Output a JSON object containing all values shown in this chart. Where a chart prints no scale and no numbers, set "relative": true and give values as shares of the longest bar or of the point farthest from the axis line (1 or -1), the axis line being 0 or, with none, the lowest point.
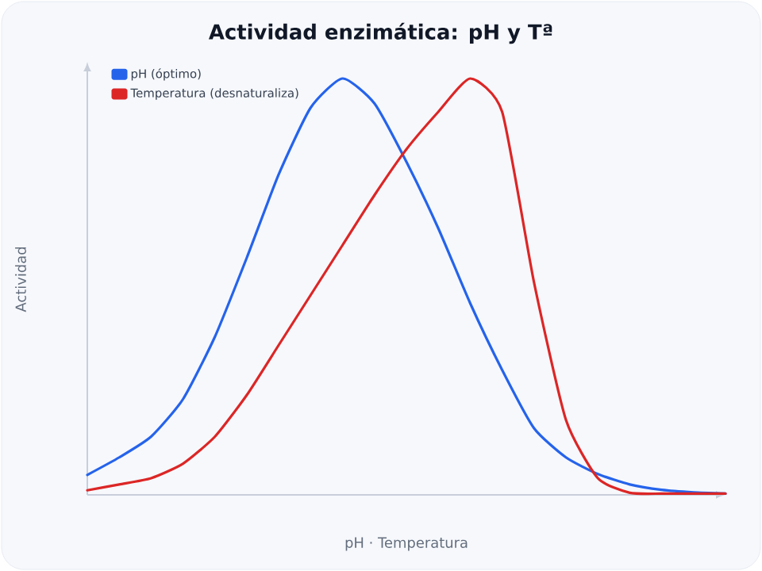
{
  "chart_data": {
    "type": "line",
    "title": "Actividad enzimática: pH y Tª",
    "xlabel": "pH · Temperatura",
    "ylabel": "Actividad",
    "relative": true,
    "legend": "top left",
    "marker": "none",
    "line_style": "solid",
    "categories": [
      null,
      null,
      null,
      null,
      null,
      null,
      null,
      null,
      null,
      null,
      null,
      null,
      null,
      null,
      null,
      null,
      null,
      null,
      null,
      null,
      null
    ],
    "series": [
      {
        "name": "pH (óptimo)",
        "color": "#2563eb",
        "values": [
          0.048,
          0.09,
          0.14,
          0.23,
          0.38,
          0.57,
          0.77,
          0.93,
          1.0,
          0.94,
          0.8,
          0.64,
          0.46,
          0.3,
          0.16,
          0.09,
          0.05,
          0.025,
          0.012,
          0.006,
          0.003
        ]
      },
      {
        "name": "Temperatura (desnaturaliza)",
        "color": "#dc2626",
        "values": [
          0.011,
          0.025,
          0.04,
          0.075,
          0.14,
          0.24,
          0.36,
          0.48,
          0.6,
          0.72,
          0.83,
          0.92,
          1.0,
          0.92,
          0.51,
          0.18,
          0.04,
          0.005,
          0.003,
          0.003,
          0.003
        ]
      }
    ]
  }
}
